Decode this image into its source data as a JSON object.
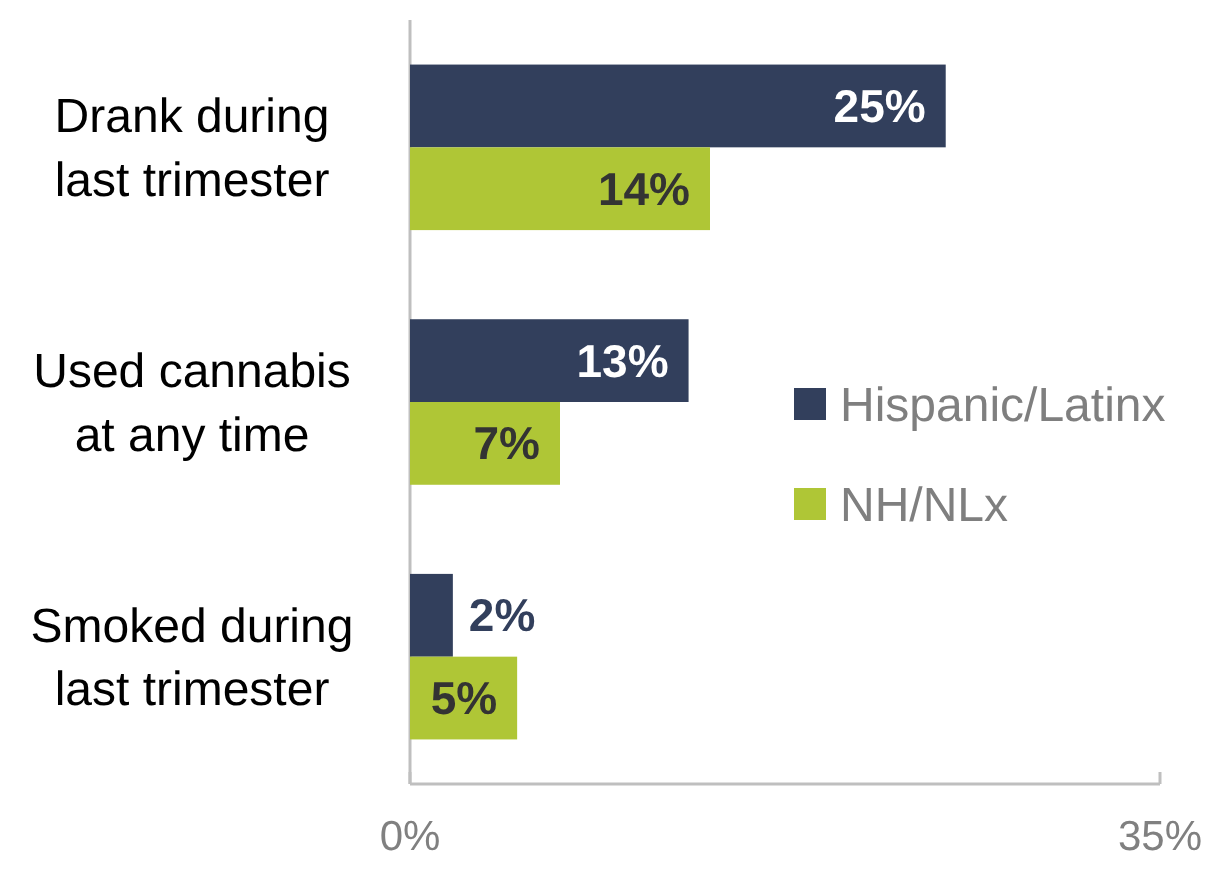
{
  "chart_data": {
    "type": "bar",
    "orientation": "horizontal",
    "categories": [
      "Drank during\nlast trimester",
      "Used cannabis\nat any time",
      "Smoked during\nlast trimester"
    ],
    "series": [
      {
        "name": "Hispanic/Latinx",
        "color": "#323f5c",
        "values": [
          25,
          13,
          2
        ],
        "value_labels": [
          "25%",
          "13%",
          "2%"
        ]
      },
      {
        "name": "NH/NLx",
        "color": "#afc636",
        "values": [
          14,
          7,
          5
        ],
        "value_labels": [
          "14%",
          "7%",
          "5%"
        ]
      }
    ],
    "xlim": [
      0,
      35
    ],
    "xticks": [
      {
        "value": 0,
        "label": "0%"
      },
      {
        "value": 35,
        "label": "35%"
      }
    ],
    "grid": false,
    "legend": "right"
  }
}
